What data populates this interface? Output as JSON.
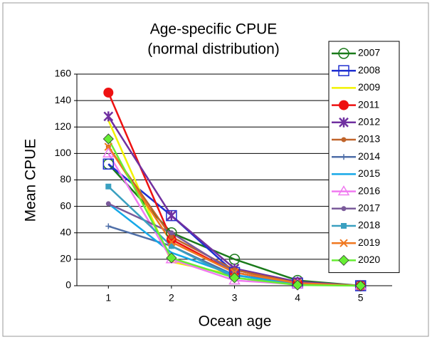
{
  "chart_data": {
    "type": "line",
    "title": "Age-specific CPUE",
    "subtitle": "(normal distribution)",
    "x_label": "Ocean age",
    "y_label": "Mean CPUE",
    "x": [
      1,
      2,
      3,
      4,
      5
    ],
    "xlim": [
      0.5,
      5.5
    ],
    "xticks": [
      1,
      2,
      3,
      4,
      5
    ],
    "ylim": [
      0,
      160
    ],
    "yticks": [
      0,
      20,
      40,
      60,
      80,
      100,
      120,
      140,
      160
    ],
    "grid": true,
    "legend": "right",
    "series": [
      {
        "name": "2007",
        "color": "#1a7a1a",
        "marker": "circle-open",
        "values": [
          92,
          40,
          20,
          4,
          0
        ]
      },
      {
        "name": "2008",
        "color": "#1f2fd0",
        "marker": "square-open",
        "values": [
          92,
          53,
          10,
          2,
          0
        ]
      },
      {
        "name": "2009",
        "color": "#f2f200",
        "marker": "none",
        "values": [
          125,
          18,
          8,
          1,
          0
        ]
      },
      {
        "name": "2011",
        "color": "#ee1111",
        "marker": "circle",
        "values": [
          146,
          35,
          10,
          2,
          0
        ]
      },
      {
        "name": "2012",
        "color": "#7030a0",
        "marker": "star",
        "values": [
          128,
          53,
          13,
          3,
          0
        ]
      },
      {
        "name": "2013",
        "color": "#c0642a",
        "marker": "dot",
        "values": [
          105,
          37,
          12,
          2,
          0
        ]
      },
      {
        "name": "2014",
        "color": "#4f6fa8",
        "marker": "plus",
        "values": [
          45,
          30,
          8,
          2,
          0
        ]
      },
      {
        "name": "2015",
        "color": "#16a8e8",
        "marker": "none",
        "values": [
          62,
          25,
          8,
          1,
          0
        ]
      },
      {
        "name": "2016",
        "color": "#f07af0",
        "marker": "triangle-open",
        "values": [
          100,
          20,
          4,
          1,
          0
        ]
      },
      {
        "name": "2017",
        "color": "#7a5a9a",
        "marker": "dot",
        "values": [
          62,
          40,
          10,
          2,
          0
        ]
      },
      {
        "name": "2018",
        "color": "#3aa0c0",
        "marker": "square",
        "values": [
          75,
          30,
          6,
          1,
          0
        ]
      },
      {
        "name": "2019",
        "color": "#f07820",
        "marker": "x",
        "values": [
          105,
          33,
          10,
          2,
          0
        ]
      },
      {
        "name": "2020",
        "color": "#66ee33",
        "marker": "diamond",
        "values": [
          111,
          21,
          6,
          0.5,
          0
        ]
      }
    ]
  }
}
